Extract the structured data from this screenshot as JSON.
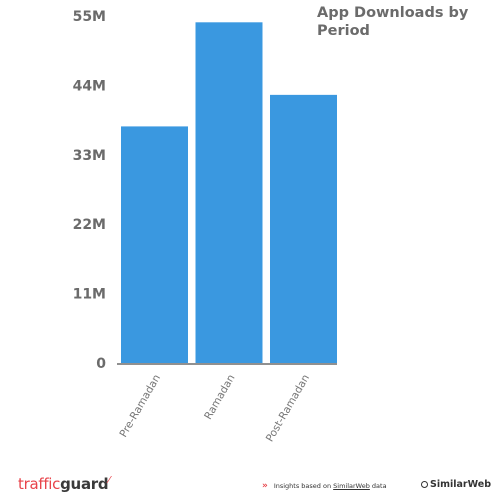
{
  "chart_data": {
    "type": "bar",
    "title": "App Downloads by Period",
    "categories": [
      "Pre-Ramadan",
      "Ramadan",
      "Post-Ramadan"
    ],
    "values": [
      37.5,
      54,
      42.5
    ],
    "yticks": [
      0,
      11,
      22,
      33,
      44,
      55
    ],
    "ytick_labels": [
      "0",
      "11M",
      "22M",
      "33M",
      "44M",
      "55M"
    ],
    "ylim": [
      0,
      55
    ],
    "xlabel": "",
    "ylabel": "",
    "grid": false,
    "bar_color": "#3a98e0"
  },
  "footer": {
    "logo_part1": "traffic",
    "logo_part2": "guard",
    "insights_prefix": "Insights based on ",
    "insights_link": "SimilarWeb",
    "insights_suffix": " data",
    "brand": "SimilarWeb",
    "accent_color": "#e8434a"
  }
}
